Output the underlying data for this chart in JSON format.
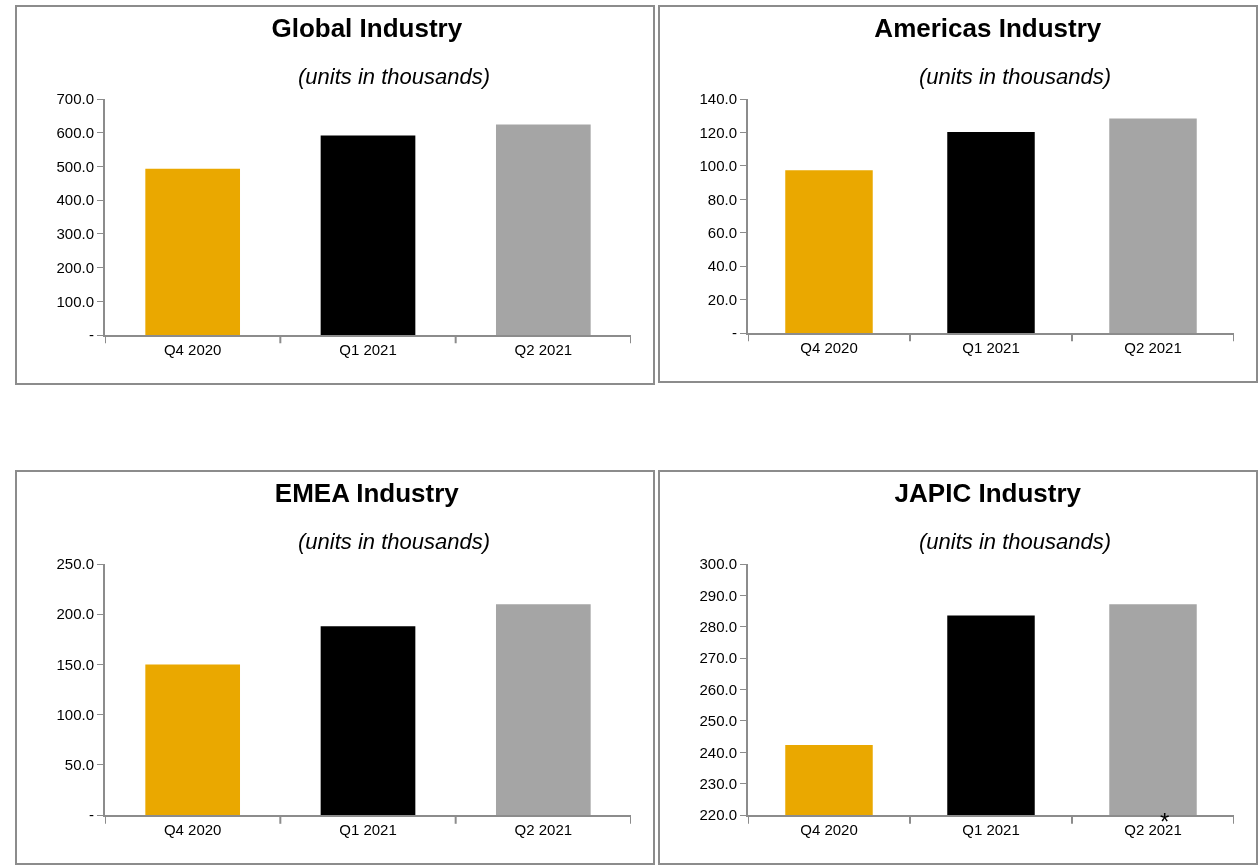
{
  "chart_data": [
    {
      "type": "bar",
      "title": "Global Industry",
      "subtitle": "(units in thousands)",
      "categories": [
        "Q4 2020",
        "Q1 2021",
        "Q2 2021"
      ],
      "values": [
        493,
        592,
        624
      ],
      "colors": [
        "#eaa800",
        "#000000",
        "#a5a5a5"
      ],
      "ylim": [
        0,
        700
      ],
      "yticks": [
        {
          "value": 0,
          "label": "-"
        },
        {
          "value": 100,
          "label": "100.0"
        },
        {
          "value": 200,
          "label": "200.0"
        },
        {
          "value": 300,
          "label": "300.0"
        },
        {
          "value": 400,
          "label": "400.0"
        },
        {
          "value": 500,
          "label": "500.0"
        },
        {
          "value": 600,
          "label": "600.0"
        },
        {
          "value": 700,
          "label": "700.0"
        }
      ],
      "grid": false
    },
    {
      "type": "bar",
      "title": "Americas Industry",
      "subtitle": "(units in thousands)",
      "categories": [
        "Q4 2020",
        "Q1 2021",
        "Q2 2021"
      ],
      "values": [
        97.4,
        120.3,
        128.4
      ],
      "colors": [
        "#eaa800",
        "#000000",
        "#a5a5a5"
      ],
      "ylim": [
        0,
        140
      ],
      "yticks": [
        {
          "value": 0,
          "label": "-"
        },
        {
          "value": 20,
          "label": "20.0"
        },
        {
          "value": 40,
          "label": "40.0"
        },
        {
          "value": 60,
          "label": "60.0"
        },
        {
          "value": 80,
          "label": "80.0"
        },
        {
          "value": 100,
          "label": "100.0"
        },
        {
          "value": 120,
          "label": "120.0"
        },
        {
          "value": 140,
          "label": "140.0"
        }
      ],
      "grid": false
    },
    {
      "type": "bar",
      "title": "EMEA Industry",
      "subtitle": "(units in thousands)",
      "categories": [
        "Q4 2020",
        "Q1 2021",
        "Q2 2021"
      ],
      "values": [
        150,
        188,
        210
      ],
      "colors": [
        "#eaa800",
        "#000000",
        "#a5a5a5"
      ],
      "ylim": [
        0,
        250
      ],
      "yticks": [
        {
          "value": 0,
          "label": "-"
        },
        {
          "value": 50,
          "label": "50.0"
        },
        {
          "value": 100,
          "label": "100.0"
        },
        {
          "value": 150,
          "label": "150.0"
        },
        {
          "value": 200,
          "label": "200.0"
        },
        {
          "value": 250,
          "label": "250.0"
        }
      ],
      "grid": false
    },
    {
      "type": "bar",
      "title": "JAPIC Industry",
      "subtitle": "(units in thousands)",
      "categories": [
        "Q4 2020",
        "Q1 2021",
        "Q2 2021"
      ],
      "values": [
        242.3,
        283.6,
        287.2
      ],
      "colors": [
        "#eaa800",
        "#000000",
        "#a5a5a5"
      ],
      "ylim": [
        220,
        300
      ],
      "yticks": [
        {
          "value": 220,
          "label": "220.0"
        },
        {
          "value": 230,
          "label": "230.0"
        },
        {
          "value": 240,
          "label": "240.0"
        },
        {
          "value": 250,
          "label": "250.0"
        },
        {
          "value": 260,
          "label": "260.0"
        },
        {
          "value": 270,
          "label": "270.0"
        },
        {
          "value": 280,
          "label": "280.0"
        },
        {
          "value": 290,
          "label": "290.0"
        },
        {
          "value": 300,
          "label": "300.0"
        }
      ],
      "grid": false,
      "annotations": [
        "*"
      ]
    }
  ]
}
